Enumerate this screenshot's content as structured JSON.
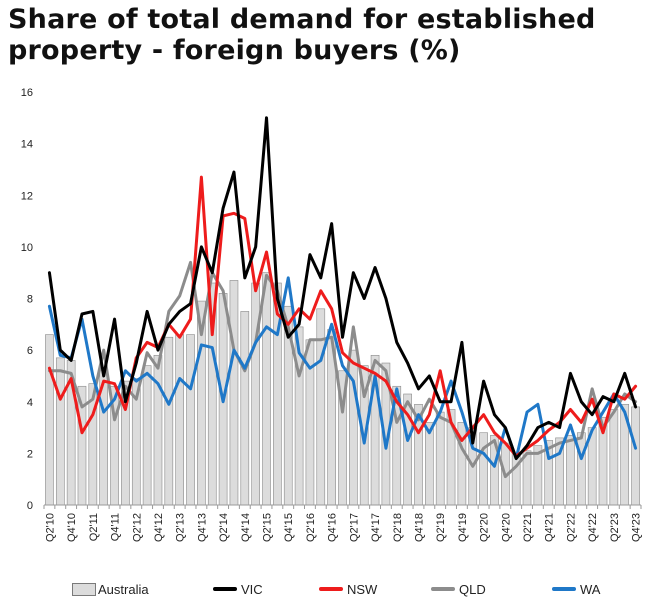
{
  "title": {
    "line1": "Share of total demand for established",
    "line2": "property - foreign buyers (%)"
  },
  "colors": {
    "Australia_fill": "#dcdcdc",
    "Australia_stroke": "#8a8a8a",
    "VIC": "#000000",
    "NSW": "#ee1c1c",
    "QLD": "#8c8c8c",
    "WA": "#1f78c8"
  },
  "legend": [
    {
      "name": "Australia",
      "kind": "bar"
    },
    {
      "name": "VIC",
      "kind": "line"
    },
    {
      "name": "NSW",
      "kind": "line"
    },
    {
      "name": "QLD",
      "kind": "line"
    },
    {
      "name": "WA",
      "kind": "line"
    }
  ],
  "chart_data": {
    "type": "bar",
    "title": "Share of total demand for established property - foreign buyers (%)",
    "xlabel": "",
    "ylabel": "",
    "ylim": [
      0,
      16
    ],
    "yticks": [
      0,
      2,
      4,
      6,
      8,
      10,
      12,
      14,
      16
    ],
    "grid": false,
    "legend_position": "bottom",
    "categories": [
      "Q2'10",
      "Q3'10",
      "Q4'10",
      "Q1'11",
      "Q2'11",
      "Q3'11",
      "Q4'11",
      "Q1'12",
      "Q2'12",
      "Q3'12",
      "Q4'12",
      "Q1'13",
      "Q2'13",
      "Q3'13",
      "Q4'13",
      "Q1'14",
      "Q2'14",
      "Q3'14",
      "Q4'14",
      "Q1'15",
      "Q2'15",
      "Q3'15",
      "Q4'15",
      "Q1'16",
      "Q2'16",
      "Q3'16",
      "Q4'16",
      "Q1'17",
      "Q2'17",
      "Q3'17",
      "Q4'17",
      "Q1'18",
      "Q2'18",
      "Q3'18",
      "Q4'18",
      "Q1'19",
      "Q2'19",
      "Q3'19",
      "Q4'19",
      "Q1'20",
      "Q2'20",
      "Q3'20",
      "Q4'20",
      "Q1'21",
      "Q2'21",
      "Q3'21",
      "Q4'21",
      "Q1'22",
      "Q2'22",
      "Q3'22",
      "Q4'22",
      "Q1'23",
      "Q2'23",
      "Q3'23",
      "Q4'23"
    ],
    "tick_labels": [
      "Q2'10",
      "Q4'10",
      "Q2'11",
      "Q4'11",
      "Q2'12",
      "Q4'12",
      "Q2'13",
      "Q4'13",
      "Q2'14",
      "Q4'14",
      "Q2'15",
      "Q4'15",
      "Q2'16",
      "Q4'16",
      "Q2'17",
      "Q4'17",
      "Q2'18",
      "Q4'18",
      "Q2'19",
      "Q4'19",
      "Q2'20",
      "Q4'20",
      "Q2'21",
      "Q4'21",
      "Q2'22",
      "Q4'22",
      "Q2'23",
      "Q4'23"
    ],
    "series": [
      {
        "name": "Australia",
        "type": "bar",
        "values": [
          6.6,
          5.7,
          5.6,
          4.6,
          4.7,
          5.2,
          4.6,
          4.8,
          4.9,
          5.4,
          5.8,
          6.5,
          6.6,
          6.6,
          7.9,
          8.6,
          8.2,
          8.7,
          7.5,
          8.6,
          9.0,
          8.6,
          7.7,
          6.9,
          6.4,
          7.6,
          6.8,
          5.2,
          6.0,
          5.4,
          5.8,
          5.5,
          4.6,
          4.3,
          3.9,
          3.2,
          3.6,
          3.7,
          3.2,
          3.0,
          2.8,
          2.7,
          2.4,
          2.0,
          2.1,
          2.3,
          2.5,
          2.6,
          2.7,
          2.8,
          3.0,
          3.4,
          3.7,
          3.9,
          3.8
        ]
      },
      {
        "name": "VIC",
        "type": "line",
        "values": [
          9.0,
          6.0,
          5.6,
          7.4,
          7.5,
          5.0,
          7.2,
          4.0,
          5.5,
          7.5,
          6.0,
          7.0,
          7.5,
          7.8,
          10.0,
          9.0,
          11.5,
          12.9,
          8.8,
          10.0,
          15.0,
          8.0,
          6.5,
          7.0,
          9.7,
          8.8,
          10.9,
          6.5,
          9.0,
          8.0,
          9.2,
          8.0,
          6.3,
          5.5,
          4.5,
          5.0,
          4.0,
          4.0,
          6.3,
          2.4,
          4.8,
          3.5,
          3.0,
          1.8,
          2.3,
          3.0,
          3.2,
          3.0,
          5.1,
          4.0,
          3.5,
          4.2,
          4.0,
          5.1,
          3.8
        ]
      },
      {
        "name": "NSW",
        "type": "line",
        "values": [
          5.3,
          4.1,
          4.9,
          2.8,
          3.5,
          4.8,
          4.7,
          3.7,
          5.7,
          6.3,
          6.1,
          7.0,
          6.5,
          7.2,
          12.7,
          6.6,
          11.2,
          11.3,
          11.1,
          8.3,
          9.8,
          7.4,
          7.0,
          7.6,
          7.2,
          8.3,
          7.6,
          5.9,
          5.5,
          5.3,
          5.1,
          4.8,
          4.0,
          3.5,
          2.8,
          3.5,
          5.2,
          3.2,
          2.5,
          3.0,
          3.5,
          2.8,
          2.4,
          1.9,
          2.2,
          2.5,
          2.9,
          3.2,
          3.7,
          3.2,
          4.1,
          2.8,
          4.3,
          4.1,
          4.6
        ]
      },
      {
        "name": "QLD",
        "type": "line",
        "values": [
          5.2,
          5.2,
          5.1,
          3.8,
          4.1,
          6.0,
          3.3,
          4.6,
          4.1,
          5.9,
          5.3,
          7.5,
          8.1,
          9.4,
          6.6,
          9.0,
          8.3,
          6.0,
          5.2,
          6.3,
          8.9,
          8.3,
          6.9,
          5.0,
          6.4,
          6.4,
          6.5,
          3.6,
          6.9,
          4.2,
          5.6,
          5.2,
          3.2,
          4.0,
          3.3,
          4.1,
          3.4,
          3.2,
          2.2,
          1.5,
          2.2,
          2.5,
          1.1,
          1.5,
          2.0,
          2.0,
          2.2,
          2.4,
          2.5,
          2.6,
          4.5,
          3.0,
          3.6,
          4.3,
          4.0
        ]
      },
      {
        "name": "WA",
        "type": "line",
        "values": [
          7.7,
          5.8,
          5.7,
          7.2,
          5.0,
          3.6,
          4.1,
          5.2,
          4.8,
          5.1,
          4.7,
          3.9,
          4.9,
          4.5,
          6.2,
          6.1,
          4.0,
          6.0,
          5.3,
          6.3,
          6.9,
          6.6,
          8.8,
          5.9,
          5.3,
          5.6,
          7.0,
          5.4,
          4.8,
          2.4,
          5.0,
          2.2,
          4.5,
          2.5,
          3.5,
          2.8,
          3.6,
          4.8,
          3.6,
          2.2,
          2.0,
          1.5,
          3.0,
          1.8,
          3.6,
          3.9,
          1.8,
          2.0,
          3.1,
          1.8,
          2.9,
          3.6,
          4.3,
          3.6,
          2.2
        ]
      }
    ]
  }
}
